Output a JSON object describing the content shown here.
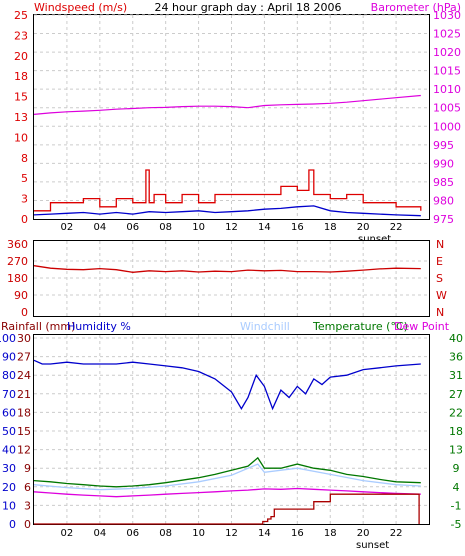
{
  "chart_data": [
    {
      "type": "line",
      "title": "24 hour graph day : April 18 2006",
      "ylabel_left": "Windspeed (m/s)",
      "ylabel_right": "Barometer (hPa)",
      "x_ticks": [
        "02",
        "04",
        "06",
        "08",
        "10",
        "12",
        "14",
        "16",
        "18",
        "20",
        "22"
      ],
      "annotation": "sunset",
      "ylim_left": [
        0,
        25
      ],
      "yticks_left": [
        "0",
        "3",
        "5",
        "8",
        "10",
        "13",
        "15",
        "18",
        "20",
        "23",
        "25"
      ],
      "ylim_right": [
        975,
        1030
      ],
      "yticks_right": [
        "975",
        "980",
        "985",
        "990",
        "995",
        "1000",
        "1005",
        "1010",
        "1015",
        "1020",
        "1025",
        "1030"
      ],
      "grid": true,
      "series": [
        {
          "name": "Barometer (hPa)",
          "color": "#dd00dd",
          "axis": "right",
          "x": [
            0,
            1,
            2,
            3,
            4,
            5,
            6,
            7,
            8,
            9,
            10,
            11,
            12,
            13,
            14,
            15,
            16,
            17,
            18,
            19,
            20,
            21,
            22,
            23.5
          ],
          "values": [
            1003.2,
            1003.6,
            1003.9,
            1004.1,
            1004.3,
            1004.6,
            1004.8,
            1005.0,
            1005.1,
            1005.3,
            1005.4,
            1005.4,
            1005.3,
            1005.0,
            1005.6,
            1005.8,
            1005.9,
            1006.0,
            1006.2,
            1006.5,
            1006.9,
            1007.3,
            1007.7,
            1008.3
          ]
        },
        {
          "name": "Wind gust (m/s)",
          "color": "#dd0000",
          "axis": "left",
          "x": [
            0,
            1,
            2,
            3,
            4,
            5,
            6,
            6.8,
            7,
            7.3,
            8,
            9,
            10,
            11,
            12,
            13,
            14,
            15,
            16,
            16.7,
            17,
            18,
            19,
            20,
            21,
            22,
            23.5
          ],
          "values": [
            1,
            2,
            2,
            2.5,
            1.5,
            2.5,
            2,
            6,
            2,
            3,
            2,
            3,
            2,
            3,
            3,
            3,
            3,
            4,
            3.5,
            6,
            3,
            2.5,
            3,
            2,
            2,
            1.5,
            1
          ]
        },
        {
          "name": "Windspeed (m/s)",
          "color": "#0000cc",
          "axis": "left",
          "x": [
            0,
            1,
            2,
            3,
            4,
            5,
            6,
            7,
            8,
            9,
            10,
            11,
            12,
            13,
            14,
            15,
            16,
            17,
            18,
            19,
            20,
            21,
            22,
            23.5
          ],
          "values": [
            0.5,
            0.6,
            0.7,
            0.8,
            0.6,
            0.8,
            0.6,
            0.9,
            0.8,
            0.9,
            1.0,
            0.8,
            0.9,
            1.0,
            1.2,
            1.3,
            1.5,
            1.6,
            1.0,
            0.8,
            0.7,
            0.6,
            0.5,
            0.4
          ]
        }
      ]
    },
    {
      "type": "line",
      "yticks_left": [
        "0",
        "90",
        "180",
        "270",
        "360"
      ],
      "ylim_left": [
        0,
        360
      ],
      "yticks_right": [
        "N",
        "W",
        "S",
        "E",
        "N"
      ],
      "series": [
        {
          "name": "Wind direction",
          "color": "#cc0000",
          "x": [
            0,
            1,
            2,
            3,
            4,
            5,
            6,
            7,
            8,
            9,
            10,
            11,
            12,
            13,
            14,
            15,
            16,
            17,
            18,
            19,
            20,
            21,
            22,
            23.5
          ],
          "values": [
            245,
            232,
            226,
            224,
            230,
            224,
            210,
            218,
            214,
            218,
            212,
            216,
            214,
            222,
            218,
            220,
            214,
            214,
            212,
            216,
            222,
            228,
            232,
            230
          ]
        }
      ]
    },
    {
      "type": "line",
      "labels": [
        "Rainfall (mm)",
        "Humidity %",
        "Windchill",
        "Temperature (°C)",
        "Dew Point"
      ],
      "x_ticks": [
        "02",
        "04",
        "06",
        "08",
        "10",
        "12",
        "14",
        "16",
        "18",
        "20",
        "22"
      ],
      "annotation": "sunset",
      "yticks_humidity": [
        "0",
        "10",
        "20",
        "30",
        "40",
        "50",
        "60",
        "70",
        "80",
        "90",
        "100"
      ],
      "yticks_rain": [
        "0",
        "3",
        "6",
        "9",
        "12",
        "15",
        "18",
        "21",
        "24",
        "27",
        "30"
      ],
      "yticks_temp": [
        "-5",
        "-1",
        "4",
        "9",
        "13",
        "18",
        "22",
        "27",
        "31",
        "36",
        "40"
      ],
      "ylim_humidity": [
        0,
        100
      ],
      "ylim_temp": [
        -5,
        40
      ],
      "series": [
        {
          "name": "Humidity %",
          "color": "#0000cc",
          "x": [
            0,
            0.5,
            1,
            2,
            3,
            4,
            5,
            6,
            7,
            8,
            9,
            10,
            11,
            12,
            12.6,
            13,
            13.5,
            14,
            14.5,
            15,
            15.5,
            16,
            16.5,
            17,
            17.5,
            18,
            19,
            20,
            21,
            22,
            23.5
          ],
          "values": [
            88,
            86,
            86,
            87,
            86,
            86,
            86,
            87,
            86,
            85,
            84,
            82,
            78,
            71,
            62,
            68,
            80,
            74,
            62,
            72,
            68,
            74,
            70,
            78,
            75,
            79,
            80,
            83,
            84,
            85,
            86
          ]
        },
        {
          "name": "Temperature (°C)",
          "color": "#007700",
          "axis": "temp",
          "x": [
            0,
            1,
            2,
            3,
            4,
            5,
            6,
            7,
            8,
            9,
            10,
            11,
            12,
            13,
            13.6,
            14,
            15,
            16,
            17,
            18,
            19,
            20,
            21,
            22,
            23.5
          ],
          "values": [
            5.5,
            5.2,
            4.8,
            4.5,
            4.2,
            4.0,
            4.2,
            4.5,
            5.0,
            5.6,
            6.2,
            7.0,
            8.0,
            9.0,
            11.0,
            8.5,
            8.5,
            9.5,
            8.5,
            8.0,
            7.0,
            6.5,
            5.8,
            5.2,
            5.0
          ]
        },
        {
          "name": "Windchill",
          "color": "#aaccff",
          "axis": "temp",
          "x": [
            0,
            2,
            4,
            6,
            8,
            10,
            12,
            13.6,
            14,
            16,
            18,
            20,
            22,
            23.5
          ],
          "values": [
            4.5,
            3.8,
            3.3,
            3.6,
            4.2,
            5.2,
            6.8,
            9.5,
            7.5,
            8.5,
            7.0,
            5.5,
            4.5,
            4.2
          ]
        },
        {
          "name": "Dew Point",
          "color": "#dd00dd",
          "axis": "temp",
          "x": [
            0,
            1,
            2,
            3,
            4,
            5,
            6,
            7,
            8,
            9,
            10,
            11,
            12,
            13,
            14,
            15,
            16,
            17,
            18,
            19,
            20,
            21,
            22,
            23.5
          ],
          "values": [
            2.8,
            2.5,
            2.2,
            2.0,
            1.8,
            1.6,
            1.8,
            2.0,
            2.2,
            2.4,
            2.6,
            2.8,
            3.0,
            3.2,
            3.5,
            3.4,
            3.6,
            3.4,
            3.2,
            3.0,
            2.8,
            2.6,
            2.4,
            2.2
          ]
        },
        {
          "name": "Rainfall (mm)",
          "color": "#aa0000",
          "axis": "rain",
          "x": [
            0,
            13.6,
            13.9,
            14.2,
            14.4,
            14.6,
            16.9,
            17.0,
            17.9,
            18.0,
            23.3,
            23.4
          ],
          "values": [
            0,
            0,
            0.4,
            0.8,
            1.2,
            2.4,
            2.4,
            3.6,
            3.6,
            4.8,
            4.8,
            0
          ]
        }
      ]
    }
  ]
}
